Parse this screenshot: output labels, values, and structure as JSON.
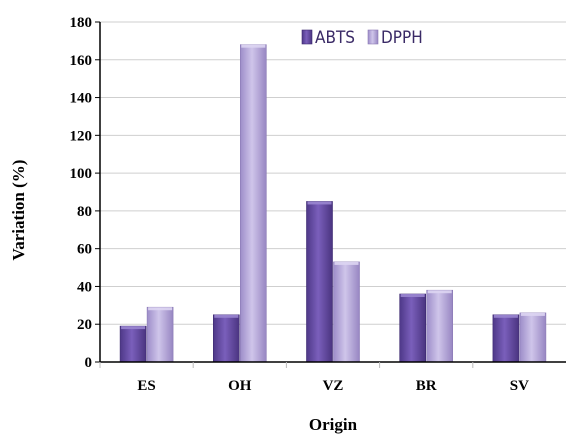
{
  "chart_data": {
    "type": "bar",
    "categories": [
      "ES",
      "OH",
      "VZ",
      "BR",
      "SV"
    ],
    "series": [
      {
        "name": "ABTS",
        "values": [
          19,
          25,
          85,
          36,
          25
        ]
      },
      {
        "name": "DPPH",
        "values": [
          29,
          168,
          53,
          38,
          26
        ]
      }
    ],
    "title": "",
    "xlabel": "Origin",
    "ylabel": "Variation (%)",
    "ylim": [
      0,
      180
    ],
    "yticks": [
      0,
      20,
      40,
      60,
      80,
      100,
      120,
      140,
      160,
      180
    ],
    "grid": true,
    "legend_position": "top-right",
    "colors": {
      "ABTS": "#6a4ea8",
      "DPPH": "#b3a5d9",
      "grid": "#cfcfcf",
      "axis": "#000000"
    }
  }
}
